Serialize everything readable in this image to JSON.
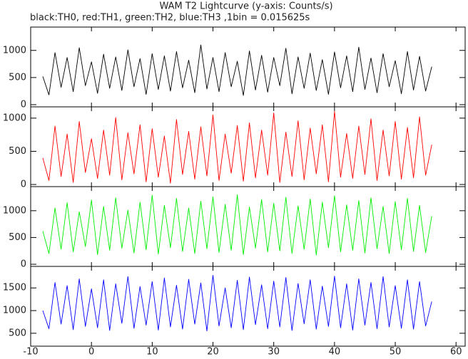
{
  "chart_data": {
    "type": "line",
    "title": "WAM T2 Lightcurve (y-axis: Counts/s)",
    "subtitle": "black:TH0, red:TH1, green:TH2, blue:TH3 ,1bin = 0.015625s",
    "x": [
      -8,
      -7,
      -6,
      -5,
      -4,
      -3,
      -2,
      -1,
      0,
      1,
      2,
      3,
      4,
      5,
      6,
      7,
      8,
      9,
      10,
      11,
      12,
      13,
      14,
      15,
      16,
      17,
      18,
      19,
      20,
      21,
      22,
      23,
      24,
      25,
      26,
      27,
      28,
      29,
      30,
      31,
      32,
      33,
      34,
      35,
      36,
      37,
      38,
      39,
      40,
      41,
      42,
      43,
      44,
      45,
      46,
      47,
      48,
      49,
      50,
      51,
      52,
      53,
      54,
      55,
      56
    ],
    "xlim": [
      -10,
      61.5
    ],
    "xticks": [
      -10,
      0,
      10,
      20,
      30,
      40,
      50,
      60
    ],
    "panels": [
      {
        "color": "#000000",
        "ylim": [
          -40,
          1430
        ],
        "yticks": [
          0,
          500,
          1000
        ],
        "values": [
          520,
          180,
          960,
          320,
          870,
          240,
          1050,
          350,
          790,
          210,
          930,
          300,
          880,
          260,
          1010,
          330,
          850,
          190,
          940,
          280,
          900,
          250,
          980,
          310,
          820,
          220,
          1100,
          290,
          870,
          240,
          960,
          330,
          800,
          170,
          990,
          270,
          910,
          230,
          870,
          350,
          1040,
          200,
          880,
          300,
          950,
          260,
          830,
          190,
          970,
          310,
          900,
          240,
          1060,
          280,
          860,
          220,
          940,
          330,
          810,
          200,
          980,
          270,
          890,
          250,
          700
        ]
      },
      {
        "color": "#ff0000",
        "ylim": [
          -32,
          1170
        ],
        "yticks": [
          0,
          500,
          1000
        ],
        "values": [
          400,
          60,
          880,
          120,
          760,
          30,
          950,
          180,
          690,
          90,
          820,
          140,
          1010,
          70,
          780,
          160,
          900,
          40,
          840,
          110,
          730,
          20,
          980,
          150,
          800,
          80,
          870,
          130,
          1050,
          60,
          760,
          170,
          890,
          50,
          930,
          100,
          820,
          140,
          1080,
          30,
          790,
          120,
          960,
          70,
          850,
          160,
          900,
          40,
          1100,
          110,
          770,
          90,
          880,
          150,
          990,
          60,
          820,
          130,
          950,
          80,
          860,
          100,
          1020,
          140,
          600
        ]
      },
      {
        "color": "#00ee00",
        "ylim": [
          -40,
          1450
        ],
        "yticks": [
          0,
          500,
          1000
        ],
        "values": [
          620,
          200,
          1050,
          280,
          1150,
          230,
          980,
          330,
          1200,
          180,
          1080,
          260,
          1240,
          300,
          1010,
          210,
          1160,
          270,
          1290,
          190,
          1100,
          310,
          1230,
          240,
          1050,
          200,
          1180,
          290,
          1260,
          220,
          1120,
          260,
          1300,
          180,
          1070,
          300,
          1210,
          230,
          1140,
          250,
          1250,
          200,
          1090,
          280,
          1220,
          170,
          1160,
          310,
          1280,
          230,
          1110,
          260,
          1190,
          210,
          1240,
          290,
          1080,
          200,
          1170,
          270,
          1230,
          240,
          1100,
          220,
          900
        ]
      },
      {
        "color": "#0000ff",
        "ylim": [
          215,
          1975
        ],
        "yticks": [
          500,
          1000,
          1500
        ],
        "values": [
          1000,
          600,
          1620,
          700,
          1550,
          580,
          1700,
          650,
          1480,
          620,
          1680,
          560,
          1590,
          720,
          1750,
          610,
          1530,
          680,
          1640,
          570,
          1720,
          640,
          1560,
          590,
          1690,
          700,
          1610,
          550,
          1780,
          660,
          1500,
          620,
          1670,
          580,
          1740,
          690,
          1570,
          600,
          1650,
          640,
          1730,
          560,
          1600,
          710,
          1680,
          590,
          1540,
          650,
          1760,
          620,
          1590,
          570,
          1700,
          680,
          1620,
          600,
          1750,
          640,
          1550,
          610,
          1680,
          590,
          1640,
          660,
          1200
        ]
      }
    ]
  }
}
